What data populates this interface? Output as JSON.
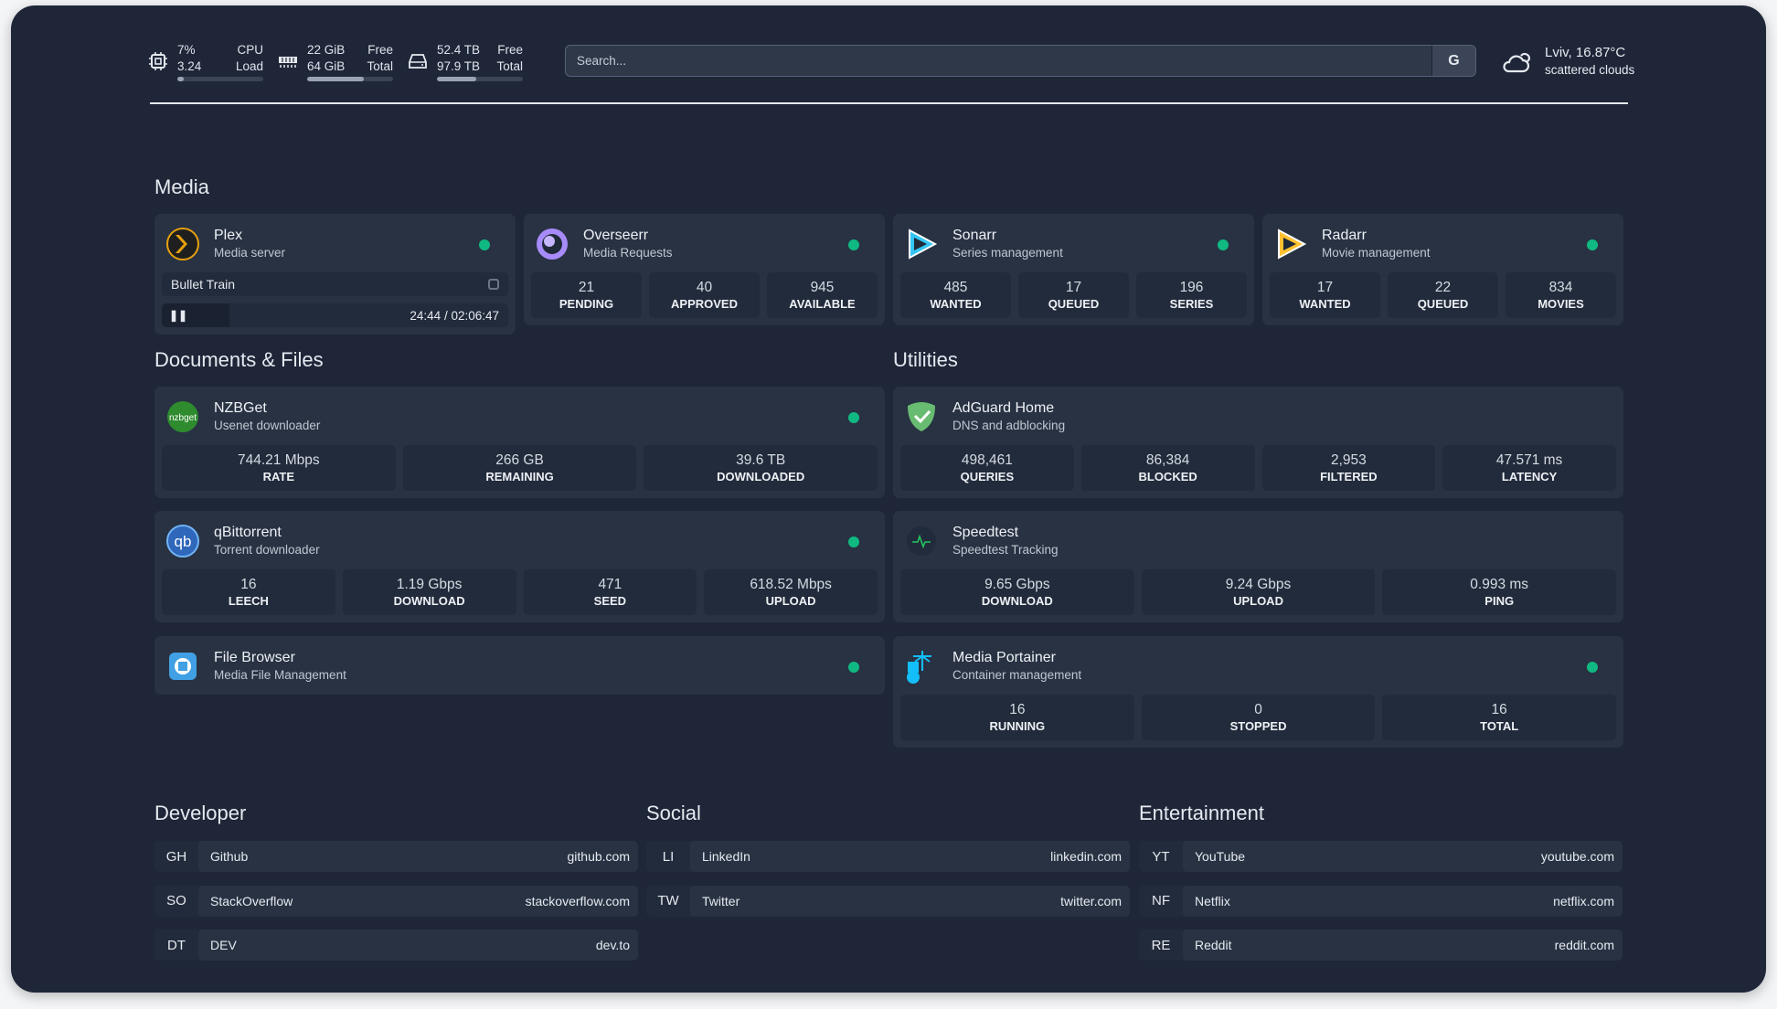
{
  "top": {
    "cpu": {
      "icon": "cpu-icon",
      "value1": "7%",
      "value2": "3.24",
      "label1": "CPU",
      "label2": "Load",
      "percent": 7
    },
    "ram": {
      "icon": "memory-icon",
      "value1": "22 GiB",
      "value2": "64 GiB",
      "label1": "Free",
      "label2": "Total",
      "percent": 66
    },
    "disk": {
      "icon": "hard-drive-icon",
      "value1": "52.4 TB",
      "value2": "97.9 TB",
      "label1": "Free",
      "label2": "Total",
      "percent": 46
    },
    "search": {
      "placeholder": "Search...",
      "engine_label": "G"
    },
    "weather": {
      "icon": "cloud-sun-icon",
      "location": "Lviv, 16.87°C",
      "condition": "scattered clouds"
    }
  },
  "sections": {
    "media": "Media",
    "docs": "Documents & Files",
    "utilities": "Utilities",
    "developer": "Developer",
    "social": "Social",
    "entertainment": "Entertainment"
  },
  "status_color": "#10b981",
  "media": [
    {
      "name": "Plex",
      "desc": "Media server",
      "icon": "plex-icon",
      "status": "online",
      "now_playing": {
        "title": "Bullet Train",
        "time": "24:44 / 02:06:47",
        "progress": 19.5
      }
    },
    {
      "name": "Overseerr",
      "desc": "Media Requests",
      "icon": "overseerr-icon",
      "status": "online",
      "stats": [
        [
          "21",
          "PENDING"
        ],
        [
          "40",
          "APPROVED"
        ],
        [
          "945",
          "AVAILABLE"
        ]
      ]
    },
    {
      "name": "Sonarr",
      "desc": "Series management",
      "icon": "sonarr-icon",
      "status": "online",
      "stats": [
        [
          "485",
          "WANTED"
        ],
        [
          "17",
          "QUEUED"
        ],
        [
          "196",
          "SERIES"
        ]
      ]
    },
    {
      "name": "Radarr",
      "desc": "Movie management",
      "icon": "radarr-icon",
      "status": "online",
      "stats": [
        [
          "17",
          "WANTED"
        ],
        [
          "22",
          "QUEUED"
        ],
        [
          "834",
          "MOVIES"
        ]
      ]
    }
  ],
  "docs": [
    {
      "name": "NZBGet",
      "desc": "Usenet downloader",
      "icon": "nzbget-icon",
      "status": "online",
      "stats": [
        [
          "744.21 Mbps",
          "RATE"
        ],
        [
          "266 GB",
          "REMAINING"
        ],
        [
          "39.6 TB",
          "DOWNLOADED"
        ]
      ]
    },
    {
      "name": "qBittorrent",
      "desc": "Torrent downloader",
      "icon": "qbittorrent-icon",
      "status": "online",
      "stats": [
        [
          "16",
          "LEECH"
        ],
        [
          "1.19 Gbps",
          "DOWNLOAD"
        ],
        [
          "471",
          "SEED"
        ],
        [
          "618.52 Mbps",
          "UPLOAD"
        ]
      ]
    },
    {
      "name": "File Browser",
      "desc": "Media File Management",
      "icon": "file-browser-icon",
      "status": "online"
    }
  ],
  "utilities": [
    {
      "name": "AdGuard Home",
      "desc": "DNS and adblocking",
      "icon": "adguard-icon",
      "stats": [
        [
          "498,461",
          "QUERIES"
        ],
        [
          "86,384",
          "BLOCKED"
        ],
        [
          "2,953",
          "FILTERED"
        ],
        [
          "47.571 ms",
          "LATENCY"
        ]
      ]
    },
    {
      "name": "Speedtest",
      "desc": "Speedtest Tracking",
      "icon": "speedtest-icon",
      "stats": [
        [
          "9.65 Gbps",
          "DOWNLOAD"
        ],
        [
          "9.24 Gbps",
          "UPLOAD"
        ],
        [
          "0.993 ms",
          "PING"
        ]
      ]
    },
    {
      "name": "Media Portainer",
      "desc": "Container management",
      "icon": "portainer-icon",
      "status": "online",
      "stats": [
        [
          "16",
          "RUNNING"
        ],
        [
          "0",
          "STOPPED"
        ],
        [
          "16",
          "TOTAL"
        ]
      ]
    }
  ],
  "bookmarks": {
    "developer": [
      {
        "abbr": "GH",
        "name": "Github",
        "url": "github.com"
      },
      {
        "abbr": "SO",
        "name": "StackOverflow",
        "url": "stackoverflow.com"
      },
      {
        "abbr": "DT",
        "name": "DEV",
        "url": "dev.to"
      }
    ],
    "social": [
      {
        "abbr": "LI",
        "name": "LinkedIn",
        "url": "linkedin.com"
      },
      {
        "abbr": "TW",
        "name": "Twitter",
        "url": "twitter.com"
      }
    ],
    "entertainment": [
      {
        "abbr": "YT",
        "name": "YouTube",
        "url": "youtube.com"
      },
      {
        "abbr": "NF",
        "name": "Netflix",
        "url": "netflix.com"
      },
      {
        "abbr": "RE",
        "name": "Reddit",
        "url": "reddit.com"
      }
    ]
  }
}
